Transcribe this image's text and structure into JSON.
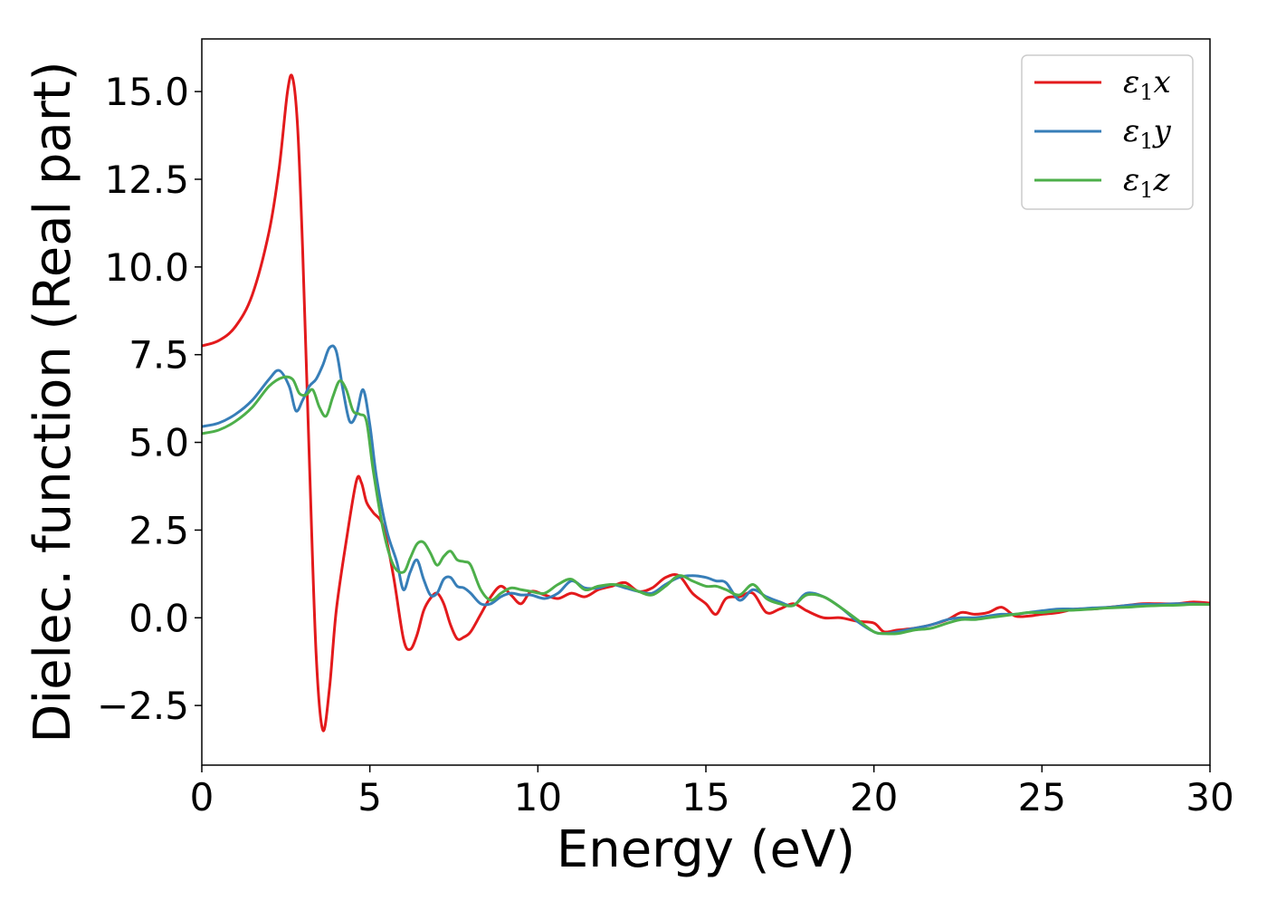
{
  "chart_data": {
    "type": "line",
    "xlabel": "Energy (eV)",
    "ylabel": "Dielec. function (Real part)",
    "xlim": [
      0,
      30
    ],
    "ylim": [
      -4.2,
      16.5
    ],
    "xticks": [
      0,
      5,
      10,
      15,
      20,
      25,
      30
    ],
    "xtick_labels": [
      "0",
      "5",
      "10",
      "15",
      "20",
      "25",
      "30"
    ],
    "yticks": [
      -2.5,
      0.0,
      2.5,
      5.0,
      7.5,
      10.0,
      12.5,
      15.0
    ],
    "ytick_labels": [
      "−2.5",
      "0.0",
      "2.5",
      "5.0",
      "7.5",
      "10.0",
      "12.5",
      "15.0"
    ],
    "grid": false,
    "legend_position": "top-right",
    "series": [
      {
        "name": "ε1x",
        "color": "#e31a1c",
        "x": [
          0,
          0.5,
          1.0,
          1.5,
          2.0,
          2.3,
          2.55,
          2.7,
          2.85,
          3.0,
          3.2,
          3.4,
          3.6,
          3.8,
          4.0,
          4.3,
          4.6,
          4.75,
          4.9,
          5.1,
          5.4,
          5.7,
          6.0,
          6.2,
          6.4,
          6.6,
          6.8,
          7.0,
          7.2,
          7.4,
          7.6,
          7.8,
          8.0,
          8.3,
          8.6,
          8.9,
          9.2,
          9.5,
          9.8,
          10.2,
          10.6,
          11.0,
          11.4,
          11.8,
          12.2,
          12.6,
          13.0,
          13.4,
          13.8,
          14.2,
          14.6,
          15.0,
          15.3,
          15.6,
          16.0,
          16.4,
          16.8,
          17.2,
          17.6,
          18.0,
          18.5,
          19.0,
          19.5,
          20.0,
          20.3,
          20.7,
          21.2,
          21.7,
          22.2,
          22.6,
          23.0,
          23.4,
          23.8,
          24.2,
          24.6,
          25.0,
          25.5,
          26.0,
          26.5,
          27.0,
          27.5,
          28.0,
          28.5,
          29.0,
          29.5,
          30.0
        ],
        "y": [
          7.75,
          7.9,
          8.3,
          9.2,
          11.0,
          12.8,
          15.0,
          15.4,
          14.0,
          10.5,
          4.5,
          -1.0,
          -3.2,
          -2.0,
          0.2,
          2.2,
          3.9,
          3.85,
          3.3,
          3.0,
          2.6,
          1.2,
          -0.6,
          -0.9,
          -0.5,
          0.2,
          0.55,
          0.7,
          0.4,
          -0.2,
          -0.6,
          -0.55,
          -0.4,
          0.1,
          0.6,
          0.9,
          0.65,
          0.4,
          0.75,
          0.65,
          0.55,
          0.7,
          0.6,
          0.8,
          0.9,
          1.0,
          0.75,
          0.85,
          1.15,
          1.2,
          0.7,
          0.4,
          0.1,
          0.55,
          0.6,
          0.7,
          0.15,
          0.25,
          0.4,
          0.2,
          0.0,
          0.0,
          -0.1,
          -0.15,
          -0.4,
          -0.35,
          -0.3,
          -0.2,
          -0.05,
          0.15,
          0.1,
          0.15,
          0.3,
          0.05,
          0.05,
          0.1,
          0.15,
          0.25,
          0.25,
          0.3,
          0.35,
          0.4,
          0.4,
          0.4,
          0.45,
          0.42
        ]
      },
      {
        "name": "ε1y",
        "color": "#377eb8",
        "x": [
          0,
          0.5,
          1.0,
          1.5,
          2.0,
          2.3,
          2.6,
          2.8,
          3.0,
          3.2,
          3.4,
          3.6,
          3.8,
          4.0,
          4.2,
          4.4,
          4.6,
          4.8,
          5.0,
          5.2,
          5.5,
          5.8,
          6.0,
          6.2,
          6.4,
          6.6,
          6.8,
          7.0,
          7.2,
          7.4,
          7.6,
          7.8,
          8.0,
          8.3,
          8.6,
          8.9,
          9.2,
          9.5,
          9.8,
          10.2,
          10.6,
          11.0,
          11.4,
          11.8,
          12.2,
          12.6,
          13.0,
          13.4,
          13.8,
          14.2,
          14.6,
          15.0,
          15.3,
          15.6,
          16.0,
          16.4,
          16.8,
          17.2,
          17.6,
          18.0,
          18.5,
          19.0,
          19.5,
          20.0,
          20.3,
          20.7,
          21.2,
          21.7,
          22.2,
          22.6,
          23.0,
          23.4,
          23.8,
          24.2,
          24.6,
          25.0,
          25.5,
          26.0,
          26.5,
          27.0,
          27.5,
          28.0,
          28.5,
          29.0,
          29.5,
          30.0
        ],
        "y": [
          5.45,
          5.55,
          5.8,
          6.2,
          6.8,
          7.05,
          6.6,
          5.9,
          6.2,
          6.6,
          6.8,
          7.2,
          7.7,
          7.6,
          6.5,
          5.6,
          5.8,
          6.5,
          5.5,
          4.0,
          2.5,
          1.6,
          0.8,
          1.3,
          1.65,
          1.1,
          0.65,
          0.7,
          1.1,
          1.15,
          0.9,
          0.85,
          0.7,
          0.4,
          0.4,
          0.6,
          0.7,
          0.65,
          0.65,
          0.55,
          0.7,
          1.05,
          0.85,
          0.85,
          0.95,
          0.85,
          0.75,
          0.7,
          0.95,
          1.15,
          1.2,
          1.15,
          1.05,
          1.0,
          0.5,
          0.8,
          0.6,
          0.45,
          0.35,
          0.7,
          0.6,
          0.3,
          -0.1,
          -0.4,
          -0.45,
          -0.4,
          -0.3,
          -0.2,
          -0.05,
          0.0,
          0.0,
          0.05,
          0.1,
          0.1,
          0.15,
          0.2,
          0.25,
          0.25,
          0.28,
          0.3,
          0.35,
          0.38,
          0.38,
          0.4,
          0.4,
          0.38
        ]
      },
      {
        "name": "ε1z",
        "color": "#4daf4a",
        "x": [
          0,
          0.5,
          1.0,
          1.5,
          2.0,
          2.4,
          2.7,
          2.9,
          3.1,
          3.3,
          3.5,
          3.7,
          3.9,
          4.1,
          4.3,
          4.5,
          4.7,
          4.9,
          5.1,
          5.4,
          5.7,
          6.0,
          6.2,
          6.4,
          6.6,
          6.8,
          7.0,
          7.2,
          7.4,
          7.6,
          7.8,
          8.0,
          8.3,
          8.6,
          8.9,
          9.2,
          9.5,
          9.8,
          10.2,
          10.6,
          11.0,
          11.4,
          11.8,
          12.2,
          12.6,
          13.0,
          13.4,
          13.8,
          14.2,
          14.6,
          15.0,
          15.3,
          15.6,
          16.0,
          16.4,
          16.8,
          17.2,
          17.6,
          18.0,
          18.5,
          19.0,
          19.5,
          20.0,
          20.3,
          20.7,
          21.2,
          21.7,
          22.2,
          22.6,
          23.0,
          23.4,
          23.8,
          24.2,
          24.6,
          25.0,
          25.5,
          26.0,
          26.5,
          27.0,
          27.5,
          28.0,
          28.5,
          29.0,
          29.5,
          30.0
        ],
        "y": [
          5.25,
          5.35,
          5.6,
          6.0,
          6.6,
          6.85,
          6.8,
          6.4,
          6.35,
          6.5,
          6.0,
          5.75,
          6.3,
          6.75,
          6.5,
          5.9,
          5.8,
          5.6,
          4.2,
          2.5,
          1.5,
          1.3,
          1.7,
          2.1,
          2.15,
          1.85,
          1.5,
          1.75,
          1.9,
          1.65,
          1.6,
          1.5,
          0.8,
          0.5,
          0.7,
          0.85,
          0.8,
          0.75,
          0.7,
          0.95,
          1.1,
          0.8,
          0.9,
          0.95,
          0.9,
          0.75,
          0.65,
          0.9,
          1.2,
          1.05,
          0.9,
          0.9,
          0.8,
          0.65,
          0.95,
          0.55,
          0.4,
          0.35,
          0.65,
          0.6,
          0.3,
          -0.05,
          -0.4,
          -0.45,
          -0.45,
          -0.35,
          -0.3,
          -0.15,
          -0.05,
          -0.05,
          0.0,
          0.05,
          0.1,
          0.15,
          0.15,
          0.2,
          0.22,
          0.25,
          0.28,
          0.3,
          0.33,
          0.35,
          0.36,
          0.38,
          0.38
        ]
      }
    ]
  }
}
